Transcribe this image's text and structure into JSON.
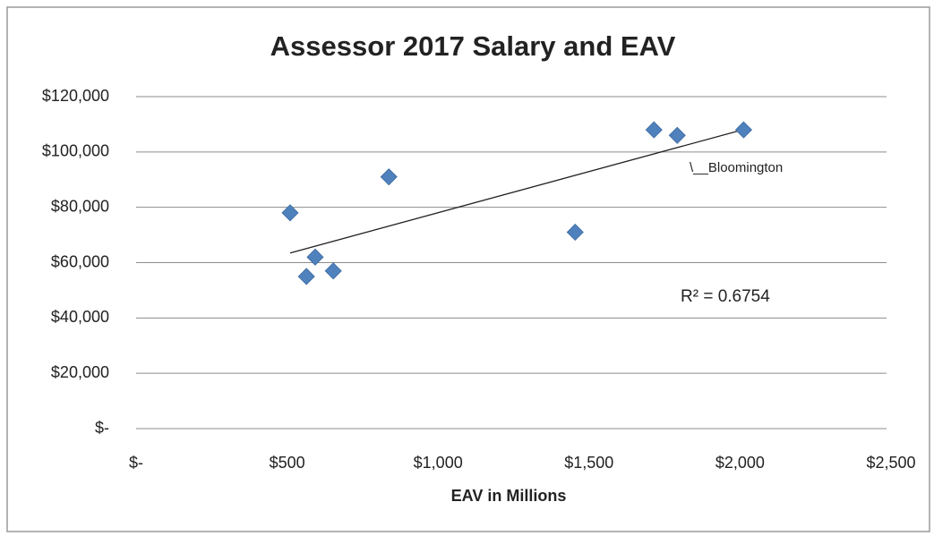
{
  "chart_data": {
    "type": "scatter",
    "title": "Assessor 2017 Salary and EAV",
    "x_label": "EAV in Millions",
    "x": [
      510,
      564,
      593,
      653,
      837,
      1454,
      1715,
      1792,
      2012
    ],
    "values": [
      78000,
      55000,
      62000,
      57000,
      91000,
      71000,
      108000,
      106000,
      108000
    ],
    "color": "#4f81bd",
    "xlim": [
      0,
      2500
    ],
    "xticks": [
      {
        "value": 0,
        "label": "$-"
      },
      {
        "value": 500,
        "label": "$500"
      },
      {
        "value": 1000,
        "label": "$1,000"
      },
      {
        "value": 1500,
        "label": "$1,500"
      },
      {
        "value": 2000,
        "label": "$2,000"
      },
      {
        "value": 2500,
        "label": "$2,500"
      }
    ],
    "ylim": [
      0,
      120000
    ],
    "yticks": [
      {
        "value": 0,
        "label": "$-"
      },
      {
        "value": 20000,
        "label": "$20,000"
      },
      {
        "value": 40000,
        "label": "$40,000"
      },
      {
        "value": 60000,
        "label": "$60,000"
      },
      {
        "value": 80000,
        "label": "$80,000"
      },
      {
        "value": 100000,
        "label": "$100,000"
      },
      {
        "value": 120000,
        "label": "$120,000"
      }
    ],
    "grid": true,
    "trendline": true,
    "annotations": [
      "\\__Bloomington",
      "R² = 0.6754"
    ]
  }
}
